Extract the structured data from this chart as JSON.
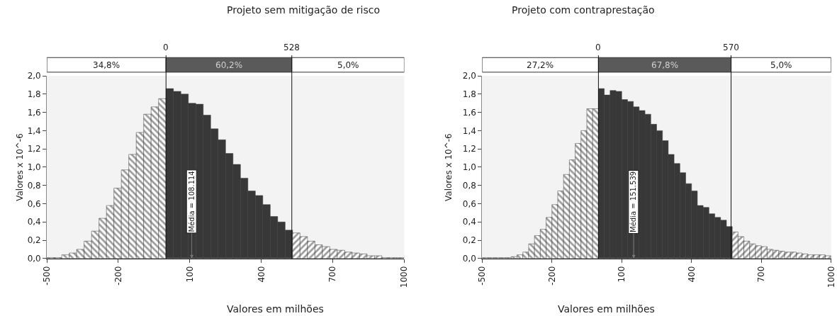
{
  "chart_data": [
    {
      "type": "histogram",
      "title": "Projeto sem mitigação de risco",
      "xlabel": "Valores em milhões",
      "ylabel": "Valores x 10^-6",
      "color": "#383838",
      "bins": [
        -500,
        -468.75,
        -437.5,
        -406.25,
        -375,
        -343.75,
        -312.5,
        -281.25,
        -250,
        -218.75,
        -187.5,
        -156.25,
        -125,
        -93.75,
        -62.5,
        -31.25,
        0,
        31.25,
        62.5,
        93.75,
        125,
        156.25,
        187.5,
        218.75,
        250,
        281.25,
        312.5,
        343.75,
        375,
        406.25,
        437.5,
        468.75,
        500,
        531.25,
        562.5,
        593.75,
        625,
        656.25,
        687.5,
        718.75,
        750,
        781.25,
        812.5,
        843.75,
        875,
        906.25,
        937.5,
        968.75,
        1000
      ],
      "values": [
        0.01,
        0.01,
        0.04,
        0.06,
        0.1,
        0.19,
        0.3,
        0.44,
        0.58,
        0.77,
        0.97,
        1.14,
        1.38,
        1.58,
        1.66,
        1.75,
        1.86,
        1.83,
        1.8,
        1.7,
        1.69,
        1.57,
        1.42,
        1.3,
        1.15,
        1.03,
        0.88,
        0.74,
        0.69,
        0.59,
        0.46,
        0.4,
        0.31,
        0.28,
        0.24,
        0.19,
        0.15,
        0.13,
        0.1,
        0.09,
        0.07,
        0.06,
        0.05,
        0.03,
        0.03,
        0.01,
        0.01,
        0.01
      ],
      "xlim": [
        -500,
        1000
      ],
      "xticks": [
        -500,
        -200,
        100,
        400,
        700,
        1000
      ],
      "ylim": [
        0,
        2
      ],
      "yticks": [
        {
          "value": 0,
          "label": "0,0"
        },
        {
          "value": 0.2,
          "label": "0,2"
        },
        {
          "value": 0.4,
          "label": "0,4"
        },
        {
          "value": 0.6,
          "label": "0,6"
        },
        {
          "value": 0.8,
          "label": "0,8"
        },
        {
          "value": 1.0,
          "label": "1,0"
        },
        {
          "value": 1.2,
          "label": "1,2"
        },
        {
          "value": 1.4,
          "label": "1,4"
        },
        {
          "value": 1.6,
          "label": "1,6"
        },
        {
          "value": 1.8,
          "label": "1,8"
        },
        {
          "value": 2.0,
          "label": "2,0"
        }
      ],
      "ref_lines": [
        {
          "axis": "x",
          "value": 0,
          "label": "0"
        },
        {
          "axis": "x",
          "value": 528,
          "label": "528"
        }
      ],
      "annotations": [
        "34,8%",
        "60,2%",
        "5,0%",
        {
          "text": "Média = 108.114",
          "x": 108.114,
          "y": 0
        }
      ],
      "grid": false,
      "legend": false
    },
    {
      "type": "histogram",
      "title": "Projeto com contraprestação",
      "xlabel": "Valores em milhões",
      "ylabel": "Valores x 10^-6",
      "color": "#383838",
      "bins": [
        -500,
        -475,
        -450,
        -425,
        -400,
        -375,
        -350,
        -325,
        -300,
        -275,
        -250,
        -225,
        -200,
        -175,
        -150,
        -125,
        -100,
        -75,
        -50,
        -25,
        0,
        25,
        50,
        75,
        100,
        125,
        150,
        175,
        200,
        225,
        250,
        275,
        300,
        325,
        350,
        375,
        400,
        425,
        450,
        475,
        500,
        525,
        550,
        575,
        600,
        625,
        650,
        675,
        700,
        725,
        750,
        775,
        800,
        825,
        850,
        875,
        900,
        925,
        950,
        975,
        1000
      ],
      "values": [
        0.01,
        0.01,
        0.01,
        0.01,
        0.01,
        0.02,
        0.04,
        0.07,
        0.16,
        0.25,
        0.32,
        0.45,
        0.59,
        0.74,
        0.92,
        1.08,
        1.26,
        1.4,
        1.64,
        1.64,
        1.86,
        1.79,
        1.84,
        1.83,
        1.74,
        1.72,
        1.66,
        1.62,
        1.58,
        1.47,
        1.4,
        1.29,
        1.14,
        1.04,
        0.94,
        0.82,
        0.74,
        0.58,
        0.56,
        0.49,
        0.45,
        0.42,
        0.35,
        0.29,
        0.24,
        0.19,
        0.16,
        0.14,
        0.13,
        0.1,
        0.09,
        0.08,
        0.07,
        0.07,
        0.06,
        0.05,
        0.04,
        0.04,
        0.04,
        0.03
      ],
      "xlim": [
        -500,
        1000
      ],
      "xticks": [
        -500,
        -200,
        100,
        400,
        700,
        1000
      ],
      "ylim": [
        0,
        2
      ],
      "yticks": [
        {
          "value": 0,
          "label": "0,0"
        },
        {
          "value": 0.2,
          "label": "0,2"
        },
        {
          "value": 0.4,
          "label": "0,4"
        },
        {
          "value": 0.6,
          "label": "0,6"
        },
        {
          "value": 0.8,
          "label": "0,8"
        },
        {
          "value": 1.0,
          "label": "1,0"
        },
        {
          "value": 1.2,
          "label": "1,2"
        },
        {
          "value": 1.4,
          "label": "1,4"
        },
        {
          "value": 1.6,
          "label": "1,6"
        },
        {
          "value": 1.8,
          "label": "1,8"
        },
        {
          "value": 2.0,
          "label": "2,0"
        }
      ],
      "ref_lines": [
        {
          "axis": "x",
          "value": 0,
          "label": "0"
        },
        {
          "axis": "x",
          "value": 570,
          "label": "570"
        }
      ],
      "annotations": [
        "27,2%",
        "67,8%",
        "5,0%",
        {
          "text": "Média = 151.539",
          "x": 151.539,
          "y": 0
        }
      ],
      "grid": false,
      "legend": false
    }
  ]
}
